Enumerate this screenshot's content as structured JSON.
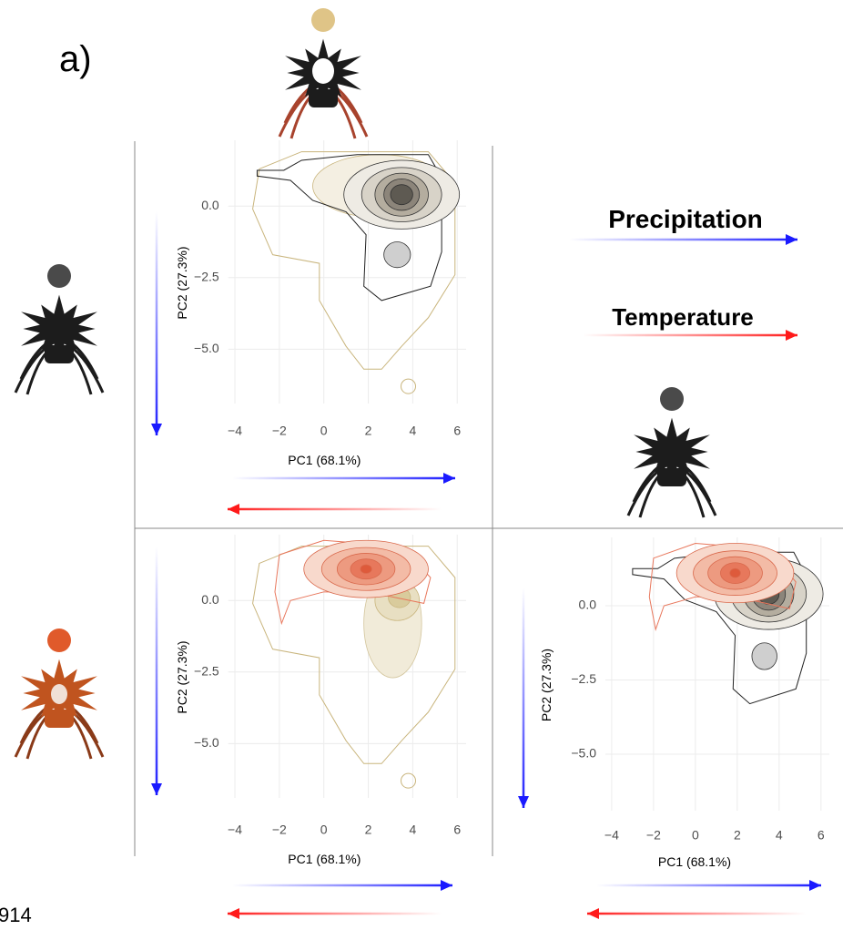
{
  "panel_label": "a)",
  "legend": {
    "precipitation": "Precipitation",
    "temperature": "Temperature"
  },
  "footnote": "914",
  "chart_data": [
    {
      "type": "contour",
      "xlabel": "PC1 (68.1%)",
      "ylabel": "PC2 (27.3%)",
      "xlim": [
        -4.3,
        6.4
      ],
      "ylim": [
        -6.9,
        2.3
      ],
      "grid": true,
      "xticks": [
        {
          "value": -4,
          "label": "−4"
        },
        {
          "value": -2,
          "label": "−2"
        },
        0,
        2,
        4,
        6
      ],
      "yticks": [
        {
          "value": 0,
          "label": "0.0"
        },
        {
          "value": -2.5,
          "label": "−2.5"
        },
        {
          "value": -5,
          "label": "−5.0"
        }
      ]
    },
    {
      "type": "contour",
      "xlabel": "PC1 (68.1%)",
      "ylabel": "PC2 (27.3%)",
      "xlim": [
        -4.3,
        6.4
      ],
      "ylim": [
        -6.9,
        2.3
      ],
      "grid": true,
      "xticks": [
        {
          "value": -4,
          "label": "−4"
        },
        {
          "value": -2,
          "label": "−2"
        },
        0,
        2,
        4,
        6
      ],
      "yticks": [
        {
          "value": 0,
          "label": "0.0"
        },
        {
          "value": -2.5,
          "label": "−2.5"
        },
        {
          "value": -5,
          "label": "−5.0"
        }
      ]
    },
    {
      "type": "contour",
      "xlabel": "PC1 (68.1%)",
      "ylabel": "PC2 (27.3%)",
      "xlim": [
        -4.3,
        6.4
      ],
      "ylim": [
        -6.9,
        2.3
      ],
      "grid": true,
      "xticks": [
        {
          "value": -4,
          "label": "−4"
        },
        {
          "value": -2,
          "label": "−2"
        },
        0,
        2,
        4,
        6
      ],
      "yticks": [
        {
          "value": 0,
          "label": "0.0"
        },
        {
          "value": -2.5,
          "label": "−2.5"
        },
        {
          "value": -5,
          "label": "−5.0"
        }
      ]
    }
  ]
}
